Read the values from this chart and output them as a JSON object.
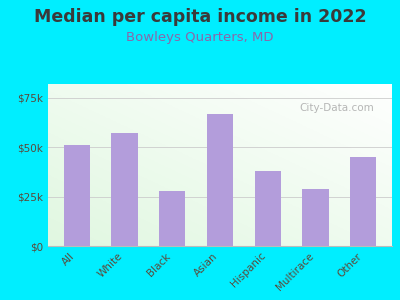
{
  "title": "Median per capita income in 2022",
  "subtitle": "Bowleys Quarters, MD",
  "categories": [
    "All",
    "White",
    "Black",
    "Asian",
    "Hispanic",
    "Multirace",
    "Other"
  ],
  "values": [
    51000,
    57000,
    28000,
    67000,
    38000,
    29000,
    45000
  ],
  "bar_color": "#b39ddb",
  "background_outer": "#00eeff",
  "title_color": "#3a3a3a",
  "subtitle_color": "#8868aa",
  "tick_label_color": "#5a4a3a",
  "yticks": [
    0,
    25000,
    50000,
    75000
  ],
  "ytick_labels": [
    "$0",
    "$25k",
    "$50k",
    "$75k"
  ],
  "ylim": [
    0,
    82000
  ],
  "watermark": "City-Data.com",
  "title_fontsize": 12.5,
  "subtitle_fontsize": 9.5
}
